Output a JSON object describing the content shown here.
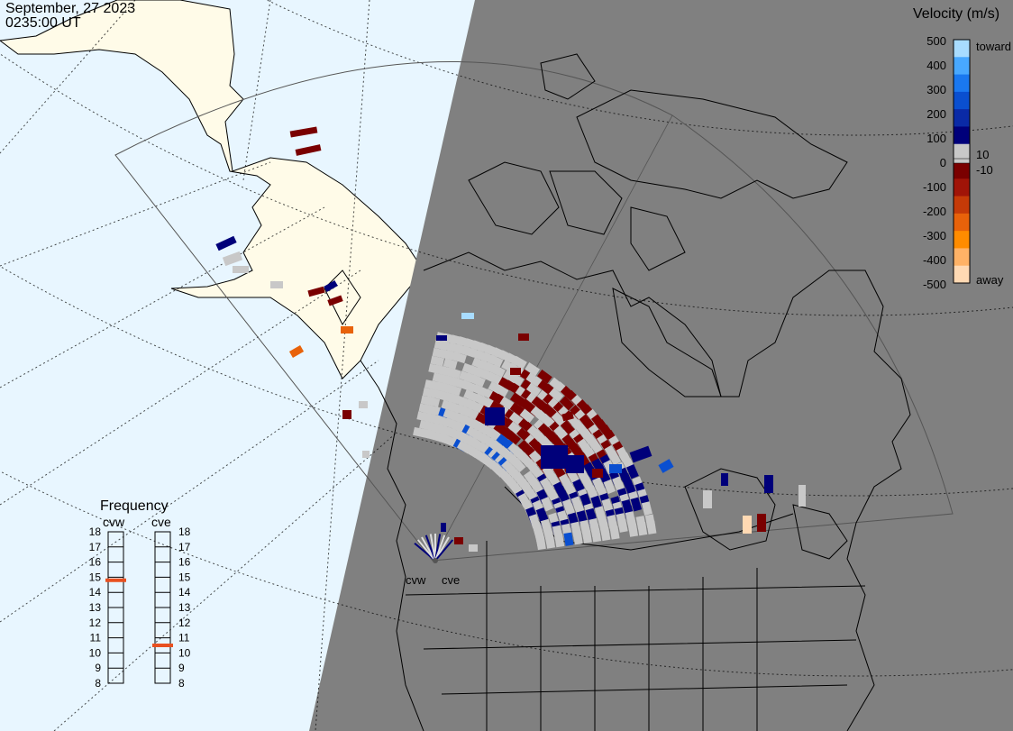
{
  "header": {
    "date": "September, 27 2023",
    "time": "0235:00 UT"
  },
  "legend": {
    "title": "Velocity (m/s)",
    "ticks": [
      "500",
      "400",
      "300",
      "200",
      "100",
      "0",
      "-100",
      "-200",
      "-300",
      "-400",
      "-500"
    ],
    "label_pos": "10",
    "label_neg": "-10",
    "label_toward": "toward",
    "label_away": "away",
    "colors": [
      "#ffd9b3",
      "#ffb266",
      "#ff8c00",
      "#e8620a",
      "#c53a08",
      "#a01408",
      "#7a0000",
      "#c8c8c8",
      "#00007a",
      "#0a2aa6",
      "#0a4fd0",
      "#1a78f0",
      "#48a8ff",
      "#a8dcff"
    ]
  },
  "frequency": {
    "title": "Frequency",
    "radars": [
      {
        "name": "cvw",
        "value": 14.8
      },
      {
        "name": "cve",
        "value": 10.5
      }
    ],
    "scale": [
      "18",
      "17",
      "16",
      "15",
      "14",
      "13",
      "12",
      "11",
      "10",
      "9",
      "8"
    ]
  },
  "map": {
    "radar_labels": [
      "cvw",
      "cve"
    ],
    "colors": {
      "ocean": "#e8f6ff",
      "day_land": "#fffbe8",
      "night": "#808080",
      "ground_scatter": "#c8c8c8"
    }
  }
}
